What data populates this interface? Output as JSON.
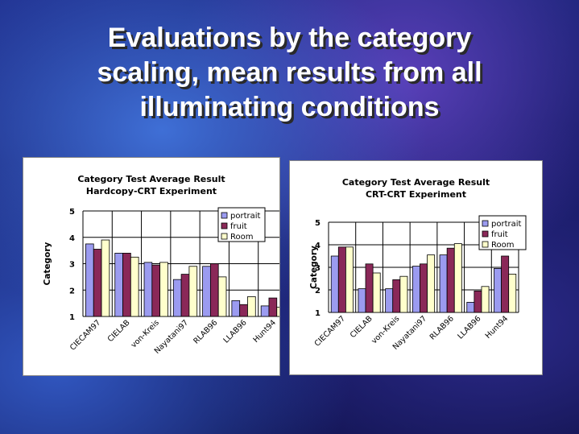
{
  "slide": {
    "title_lines": [
      "Evaluations by the category",
      "scaling, mean results from all",
      "illuminating conditions"
    ]
  },
  "colors": {
    "portrait": "#9b9bf0",
    "fruit": "#8a2858",
    "Room": "#ffffcc"
  },
  "chart_data": [
    {
      "type": "bar",
      "title": "Category Test Average Result",
      "subtitle": "Hardcopy-CRT Experiment",
      "xlabel": "",
      "ylabel": "Category",
      "ylim": [
        1,
        5
      ],
      "yticks": [
        1,
        2,
        3,
        4,
        5
      ],
      "grid": true,
      "legend": "top-right",
      "categories": [
        "CIECAM97",
        "CIELAB",
        "von-Kreis",
        "Nayatani97",
        "RLAB96",
        "LLAB96",
        "Hunt94"
      ],
      "series": [
        {
          "name": "portrait",
          "values": [
            3.75,
            3.4,
            3.05,
            2.4,
            2.9,
            1.6,
            1.4
          ]
        },
        {
          "name": "fruit",
          "values": [
            3.55,
            3.4,
            2.95,
            2.6,
            3.0,
            1.45,
            1.7
          ]
        },
        {
          "name": "Room",
          "values": [
            3.9,
            3.25,
            3.05,
            2.9,
            2.5,
            1.75,
            1.35
          ]
        }
      ]
    },
    {
      "type": "bar",
      "title": "Category Test Average Result",
      "subtitle": "CRT-CRT Experiment",
      "xlabel": "",
      "ylabel": "Category",
      "ylim": [
        1,
        5
      ],
      "yticks": [
        1,
        2,
        3,
        4,
        5
      ],
      "grid": true,
      "legend": "top-right",
      "categories": [
        "CIECAM97",
        "CIELAB",
        "von-Kreis",
        "Nayatani97",
        "RLAB96",
        "LLAB96",
        "Hunt94"
      ],
      "series": [
        {
          "name": "portrait",
          "values": [
            3.5,
            2.05,
            2.05,
            3.05,
            3.55,
            1.45,
            2.95
          ]
        },
        {
          "name": "fruit",
          "values": [
            3.9,
            3.15,
            2.45,
            3.15,
            3.85,
            1.95,
            3.5
          ]
        },
        {
          "name": "Room",
          "values": [
            3.9,
            2.75,
            2.6,
            3.55,
            4.05,
            2.15,
            2.7
          ]
        }
      ]
    }
  ]
}
